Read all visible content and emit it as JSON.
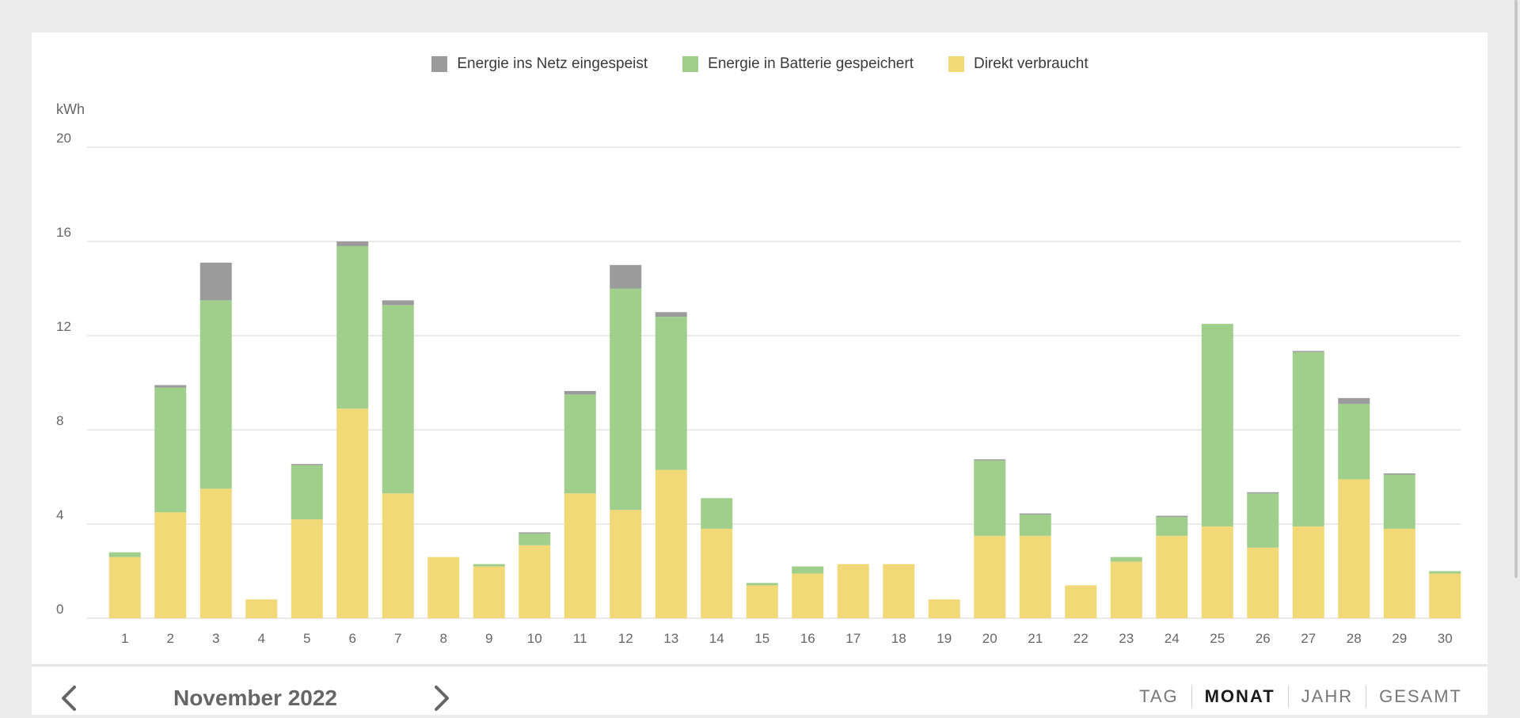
{
  "legend": {
    "grid": "Energie ins Netz eingespeist",
    "battery": "Energie in Batterie gespeichert",
    "direct": "Direkt verbraucht"
  },
  "colors": {
    "grid": "#9b9b9b",
    "battery": "#a0ce8b",
    "direct": "#f2d977",
    "gridline": "#e3e3e3",
    "axis_text": "#666666"
  },
  "footer": {
    "month": "November 2022",
    "tabs": [
      "TAG",
      "MONAT",
      "JAHR",
      "GESAMT"
    ],
    "active_tab": "MONAT"
  },
  "chart_data": {
    "type": "bar",
    "stacked": true,
    "ylabel": "kWh",
    "ylim": [
      0,
      20
    ],
    "yticks": [
      0,
      4,
      8,
      12,
      16,
      20
    ],
    "grid": true,
    "legend_position": "top-center",
    "categories": [
      "1",
      "2",
      "3",
      "4",
      "5",
      "6",
      "7",
      "8",
      "9",
      "10",
      "11",
      "12",
      "13",
      "14",
      "15",
      "16",
      "17",
      "18",
      "19",
      "20",
      "21",
      "22",
      "23",
      "24",
      "25",
      "26",
      "27",
      "28",
      "29",
      "30"
    ],
    "series": [
      {
        "name": "Direkt verbraucht",
        "color": "#f2d977",
        "values": [
          2.6,
          4.5,
          5.5,
          0.8,
          4.2,
          8.9,
          5.3,
          2.6,
          2.2,
          3.1,
          5.3,
          4.6,
          6.3,
          3.8,
          1.4,
          1.9,
          2.3,
          2.3,
          0.8,
          3.5,
          3.5,
          1.4,
          2.4,
          3.5,
          3.9,
          3.0,
          3.9,
          5.9,
          3.8,
          1.9
        ]
      },
      {
        "name": "Energie in Batterie gespeichert",
        "color": "#a0ce8b",
        "values": [
          0.2,
          5.3,
          8.0,
          0.0,
          2.3,
          6.9,
          8.0,
          0.0,
          0.1,
          0.5,
          4.2,
          9.4,
          6.5,
          1.3,
          0.1,
          0.3,
          0.0,
          0.0,
          0.0,
          3.2,
          0.9,
          0.0,
          0.2,
          0.8,
          8.6,
          2.3,
          7.4,
          3.2,
          2.3,
          0.1
        ]
      },
      {
        "name": "Energie ins Netz eingespeist",
        "color": "#9b9b9b",
        "values": [
          0.0,
          0.1,
          1.6,
          0.0,
          0.05,
          0.2,
          0.2,
          0.0,
          0.0,
          0.05,
          0.15,
          1.0,
          0.2,
          0.0,
          0.0,
          0.0,
          0.0,
          0.0,
          0.0,
          0.05,
          0.05,
          0.0,
          0.0,
          0.05,
          0.0,
          0.05,
          0.05,
          0.25,
          0.05,
          0.0
        ]
      }
    ]
  }
}
